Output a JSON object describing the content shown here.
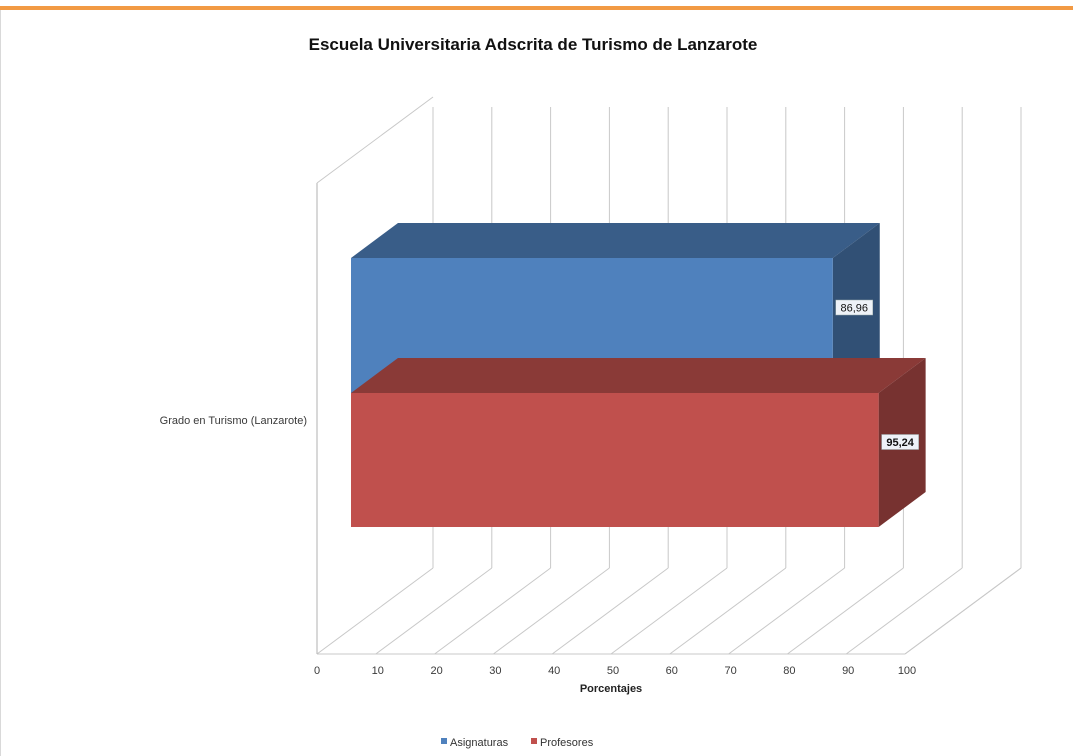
{
  "frame": {
    "accent": "#f29a44"
  },
  "chart_data": {
    "type": "bar",
    "orientation": "horizontal",
    "style": "3d",
    "title": "Escuela Universitaria Adscrita de Turismo de Lanzarote",
    "xlabel": "Porcentajes",
    "ylabel": "",
    "categories": [
      "Grado en Turismo (Lanzarote)"
    ],
    "xlim": [
      0,
      100
    ],
    "ticks": [
      0,
      10,
      20,
      30,
      40,
      50,
      60,
      70,
      80,
      90,
      100
    ],
    "grid": true,
    "legend_position": "bottom",
    "series": [
      {
        "name": "Asignaturas",
        "values": [
          86.96
        ],
        "label": "86,96",
        "color": "#4f81bd"
      },
      {
        "name": "Profesores",
        "values": [
          95.24
        ],
        "label": "95,24",
        "color": "#c0504d"
      }
    ]
  }
}
